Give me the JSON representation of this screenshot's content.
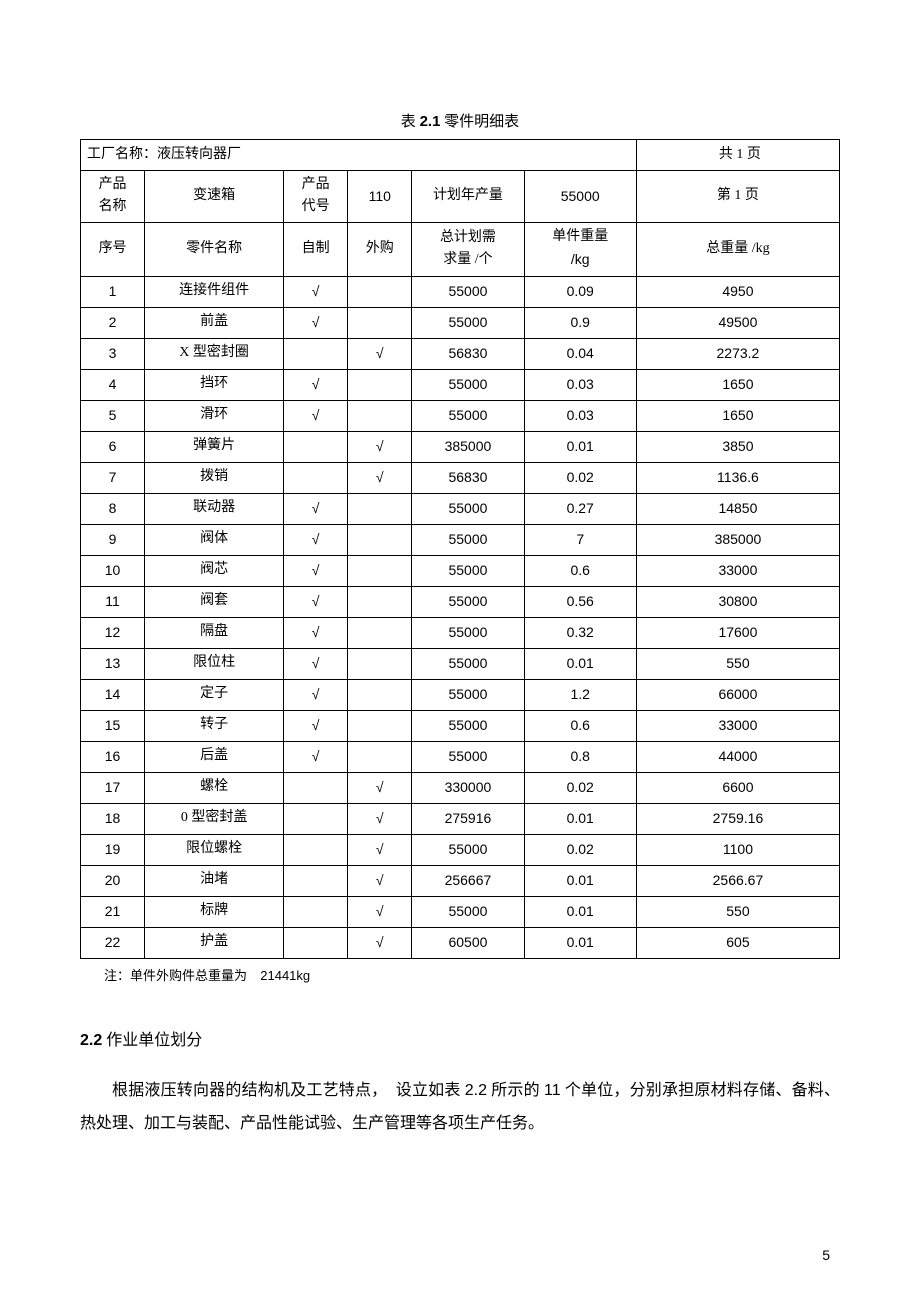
{
  "caption": {
    "prefix": "表 ",
    "number": "2.1",
    "title": "  零件明细表"
  },
  "factory": {
    "label": "工厂名称：液压转向器厂",
    "pages": "共 1 页"
  },
  "product_header": {
    "name_label_l1": "产品",
    "name_label_l2": "名称",
    "name_value": "变速箱",
    "code_label_l1": "产品",
    "code_label_l2": "代号",
    "code_value": "110",
    "plan_label": "计划年产量",
    "plan_value": "55000",
    "page_label": "第 1 页"
  },
  "columns": {
    "seq": "序号",
    "part_name": "零件名称",
    "self_made": "自制",
    "purchased": "外购",
    "demand_l1": "总计划需",
    "demand_l2": "求量 /个",
    "unit_w_l1": "单件重量",
    "unit_w_l2": "/kg",
    "total_w": "总重量 /kg"
  },
  "check_mark": "√",
  "rows": [
    {
      "seq": "1",
      "name": "连接件组件",
      "self": true,
      "buy": false,
      "demand": "55000",
      "uw": "0.09",
      "tw": "4950"
    },
    {
      "seq": "2",
      "name": "前盖",
      "self": true,
      "buy": false,
      "demand": "55000",
      "uw": "0.9",
      "tw": "49500"
    },
    {
      "seq": "3",
      "name": "X 型密封圈",
      "self": false,
      "buy": true,
      "demand": "56830",
      "uw": "0.04",
      "tw": "2273.2"
    },
    {
      "seq": "4",
      "name": "挡环",
      "self": true,
      "buy": false,
      "demand": "55000",
      "uw": "0.03",
      "tw": "1650"
    },
    {
      "seq": "5",
      "name": "滑环",
      "self": true,
      "buy": false,
      "demand": "55000",
      "uw": "0.03",
      "tw": "1650"
    },
    {
      "seq": "6",
      "name": "弹簧片",
      "self": false,
      "buy": true,
      "demand": "385000",
      "uw": "0.01",
      "tw": "3850"
    },
    {
      "seq": "7",
      "name": "拨销",
      "self": false,
      "buy": true,
      "demand": "56830",
      "uw": "0.02",
      "tw": "1136.6"
    },
    {
      "seq": "8",
      "name": "联动器",
      "self": true,
      "buy": false,
      "demand": "55000",
      "uw": "0.27",
      "tw": "14850"
    },
    {
      "seq": "9",
      "name": "阀体",
      "self": true,
      "buy": false,
      "demand": "55000",
      "uw": "7",
      "tw": "385000"
    },
    {
      "seq": "10",
      "name": "阀芯",
      "self": true,
      "buy": false,
      "demand": "55000",
      "uw": "0.6",
      "tw": "33000"
    },
    {
      "seq": "11",
      "name": "阀套",
      "self": true,
      "buy": false,
      "demand": "55000",
      "uw": "0.56",
      "tw": "30800"
    },
    {
      "seq": "12",
      "name": "隔盘",
      "self": true,
      "buy": false,
      "demand": "55000",
      "uw": "0.32",
      "tw": "17600"
    },
    {
      "seq": "13",
      "name": "限位柱",
      "self": true,
      "buy": false,
      "demand": "55000",
      "uw": "0.01",
      "tw": "550"
    },
    {
      "seq": "14",
      "name": "定子",
      "self": true,
      "buy": false,
      "demand": "55000",
      "uw": "1.2",
      "tw": "66000"
    },
    {
      "seq": "15",
      "name": "转子",
      "self": true,
      "buy": false,
      "demand": "55000",
      "uw": "0.6",
      "tw": "33000"
    },
    {
      "seq": "16",
      "name": "后盖",
      "self": true,
      "buy": false,
      "demand": "55000",
      "uw": "0.8",
      "tw": "44000"
    },
    {
      "seq": "17",
      "name": "螺栓",
      "self": false,
      "buy": true,
      "demand": "330000",
      "uw": "0.02",
      "tw": "6600"
    },
    {
      "seq": "18",
      "name": "0 型密封盖",
      "self": false,
      "buy": true,
      "demand": "275916",
      "uw": "0.01",
      "tw": "2759.16"
    },
    {
      "seq": "19",
      "name": "限位螺栓",
      "self": false,
      "buy": true,
      "demand": "55000",
      "uw": "0.02",
      "tw": "1100"
    },
    {
      "seq": "20",
      "name": "油堵",
      "self": false,
      "buy": true,
      "demand": "256667",
      "uw": "0.01",
      "tw": "2566.67"
    },
    {
      "seq": "21",
      "name": "标牌",
      "self": false,
      "buy": true,
      "demand": "55000",
      "uw": "0.01",
      "tw": "550"
    },
    {
      "seq": "22",
      "name": "护盖",
      "self": false,
      "buy": true,
      "demand": "60500",
      "uw": "0.01",
      "tw": "605"
    }
  ],
  "note": {
    "label": "注：单件外购件总重量为",
    "value": "21441kg"
  },
  "section": {
    "number": "2.2",
    "title": " 作业单位划分"
  },
  "paragraph": {
    "p1a": "根据液压转向器的结构机及工艺特点，",
    "p1b": "设立如表 ",
    "p1_num1": "2.2",
    "p1c": " 所示的 ",
    "p1_num2": "11",
    "p1d": " 个单位，分别承担原材料存储、备料、热处理、加工与装配、产品性能试验、生产管理等各项生产任务。"
  },
  "page_number": "5",
  "col_widths": [
    "60",
    "130",
    "60",
    "60",
    "105",
    "105",
    "190"
  ]
}
